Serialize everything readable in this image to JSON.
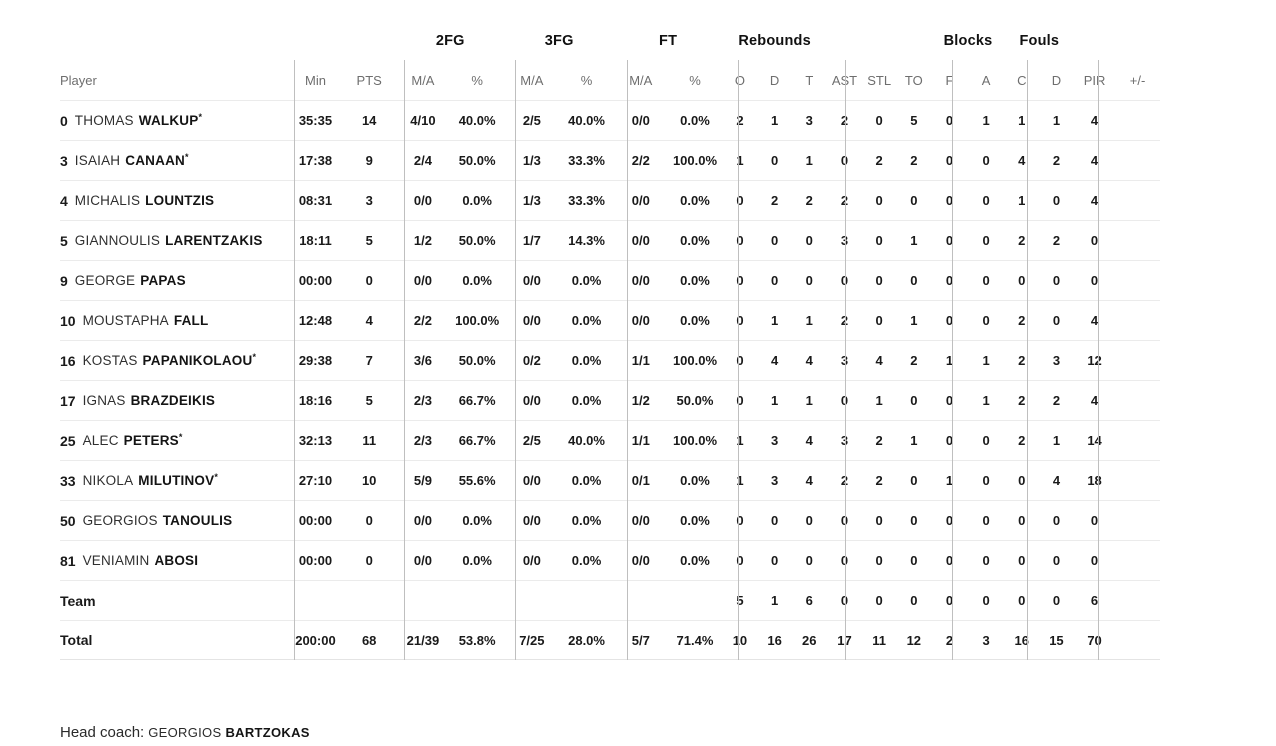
{
  "colors": {
    "text": "#1a1a1a",
    "header_text": "#6e6e6e",
    "vertical_divider": "#bfbfbf",
    "row_divider": "#ebebeb",
    "scrollbar_thumb": "#cbcbcb",
    "scrollbar_track": "#f1f1f1"
  },
  "table": {
    "groups": [
      "2FG",
      "3FG",
      "FT",
      "Rebounds",
      "Blocks",
      "Fouls"
    ],
    "columns": [
      "Player",
      "Min",
      "PTS",
      "M/A",
      "%",
      "M/A",
      "%",
      "M/A",
      "%",
      "O",
      "D",
      "T",
      "AST",
      "STL",
      "TO",
      "F",
      "A",
      "C",
      "D",
      "PIR",
      "+/-"
    ],
    "rows": [
      {
        "num": "0",
        "first": "THOMAS",
        "last": "WALKUP",
        "mark": "*",
        "min": "35:35",
        "pts": "14",
        "fg2_ma": "4/10",
        "fg2_pct": "40.0%",
        "fg3_ma": "2/5",
        "fg3_pct": "40.0%",
        "ft_ma": "0/0",
        "ft_pct": "0.0%",
        "reb_o": "2",
        "reb_d": "1",
        "reb_t": "3",
        "ast": "2",
        "stl": "0",
        "to": "5",
        "blk_f": "0",
        "blk_a": "1",
        "foul_c": "1",
        "foul_d": "1",
        "pir": "4",
        "plus_minus": ""
      },
      {
        "num": "3",
        "first": "ISAIAH",
        "last": "CANAAN",
        "mark": "*",
        "min": "17:38",
        "pts": "9",
        "fg2_ma": "2/4",
        "fg2_pct": "50.0%",
        "fg3_ma": "1/3",
        "fg3_pct": "33.3%",
        "ft_ma": "2/2",
        "ft_pct": "100.0%",
        "reb_o": "1",
        "reb_d": "0",
        "reb_t": "1",
        "ast": "0",
        "stl": "2",
        "to": "2",
        "blk_f": "0",
        "blk_a": "0",
        "foul_c": "4",
        "foul_d": "2",
        "pir": "4",
        "plus_minus": ""
      },
      {
        "num": "4",
        "first": "MICHALIS",
        "last": "LOUNTZIS",
        "mark": "",
        "min": "08:31",
        "pts": "3",
        "fg2_ma": "0/0",
        "fg2_pct": "0.0%",
        "fg3_ma": "1/3",
        "fg3_pct": "33.3%",
        "ft_ma": "0/0",
        "ft_pct": "0.0%",
        "reb_o": "0",
        "reb_d": "2",
        "reb_t": "2",
        "ast": "2",
        "stl": "0",
        "to": "0",
        "blk_f": "0",
        "blk_a": "0",
        "foul_c": "1",
        "foul_d": "0",
        "pir": "4",
        "plus_minus": ""
      },
      {
        "num": "5",
        "first": "GIANNOULIS",
        "last": "LARENTZAKIS",
        "mark": "",
        "min": "18:11",
        "pts": "5",
        "fg2_ma": "1/2",
        "fg2_pct": "50.0%",
        "fg3_ma": "1/7",
        "fg3_pct": "14.3%",
        "ft_ma": "0/0",
        "ft_pct": "0.0%",
        "reb_o": "0",
        "reb_d": "0",
        "reb_t": "0",
        "ast": "3",
        "stl": "0",
        "to": "1",
        "blk_f": "0",
        "blk_a": "0",
        "foul_c": "2",
        "foul_d": "2",
        "pir": "0",
        "plus_minus": ""
      },
      {
        "num": "9",
        "first": "GEORGE",
        "last": "PAPAS",
        "mark": "",
        "min": "00:00",
        "pts": "0",
        "fg2_ma": "0/0",
        "fg2_pct": "0.0%",
        "fg3_ma": "0/0",
        "fg3_pct": "0.0%",
        "ft_ma": "0/0",
        "ft_pct": "0.0%",
        "reb_o": "0",
        "reb_d": "0",
        "reb_t": "0",
        "ast": "0",
        "stl": "0",
        "to": "0",
        "blk_f": "0",
        "blk_a": "0",
        "foul_c": "0",
        "foul_d": "0",
        "pir": "0",
        "plus_minus": ""
      },
      {
        "num": "10",
        "first": "MOUSTAPHA",
        "last": "FALL",
        "mark": "",
        "min": "12:48",
        "pts": "4",
        "fg2_ma": "2/2",
        "fg2_pct": "100.0%",
        "fg3_ma": "0/0",
        "fg3_pct": "0.0%",
        "ft_ma": "0/0",
        "ft_pct": "0.0%",
        "reb_o": "0",
        "reb_d": "1",
        "reb_t": "1",
        "ast": "2",
        "stl": "0",
        "to": "1",
        "blk_f": "0",
        "blk_a": "0",
        "foul_c": "2",
        "foul_d": "0",
        "pir": "4",
        "plus_minus": ""
      },
      {
        "num": "16",
        "first": "KOSTAS",
        "last": "PAPANIKOLAOU",
        "mark": "*",
        "min": "29:38",
        "pts": "7",
        "fg2_ma": "3/6",
        "fg2_pct": "50.0%",
        "fg3_ma": "0/2",
        "fg3_pct": "0.0%",
        "ft_ma": "1/1",
        "ft_pct": "100.0%",
        "reb_o": "0",
        "reb_d": "4",
        "reb_t": "4",
        "ast": "3",
        "stl": "4",
        "to": "2",
        "blk_f": "1",
        "blk_a": "1",
        "foul_c": "2",
        "foul_d": "3",
        "pir": "12",
        "plus_minus": ""
      },
      {
        "num": "17",
        "first": "IGNAS",
        "last": "BRAZDEIKIS",
        "mark": "",
        "min": "18:16",
        "pts": "5",
        "fg2_ma": "2/3",
        "fg2_pct": "66.7%",
        "fg3_ma": "0/0",
        "fg3_pct": "0.0%",
        "ft_ma": "1/2",
        "ft_pct": "50.0%",
        "reb_o": "0",
        "reb_d": "1",
        "reb_t": "1",
        "ast": "0",
        "stl": "1",
        "to": "0",
        "blk_f": "0",
        "blk_a": "1",
        "foul_c": "2",
        "foul_d": "2",
        "pir": "4",
        "plus_minus": ""
      },
      {
        "num": "25",
        "first": "ALEC",
        "last": "PETERS",
        "mark": "*",
        "min": "32:13",
        "pts": "11",
        "fg2_ma": "2/3",
        "fg2_pct": "66.7%",
        "fg3_ma": "2/5",
        "fg3_pct": "40.0%",
        "ft_ma": "1/1",
        "ft_pct": "100.0%",
        "reb_o": "1",
        "reb_d": "3",
        "reb_t": "4",
        "ast": "3",
        "stl": "2",
        "to": "1",
        "blk_f": "0",
        "blk_a": "0",
        "foul_c": "2",
        "foul_d": "1",
        "pir": "14",
        "plus_minus": ""
      },
      {
        "num": "33",
        "first": "NIKOLA",
        "last": "MILUTINOV",
        "mark": "*",
        "min": "27:10",
        "pts": "10",
        "fg2_ma": "5/9",
        "fg2_pct": "55.6%",
        "fg3_ma": "0/0",
        "fg3_pct": "0.0%",
        "ft_ma": "0/1",
        "ft_pct": "0.0%",
        "reb_o": "1",
        "reb_d": "3",
        "reb_t": "4",
        "ast": "2",
        "stl": "2",
        "to": "0",
        "blk_f": "1",
        "blk_a": "0",
        "foul_c": "0",
        "foul_d": "4",
        "pir": "18",
        "plus_minus": ""
      },
      {
        "num": "50",
        "first": "GEORGIOS",
        "last": "TANOULIS",
        "mark": "",
        "min": "00:00",
        "pts": "0",
        "fg2_ma": "0/0",
        "fg2_pct": "0.0%",
        "fg3_ma": "0/0",
        "fg3_pct": "0.0%",
        "ft_ma": "0/0",
        "ft_pct": "0.0%",
        "reb_o": "0",
        "reb_d": "0",
        "reb_t": "0",
        "ast": "0",
        "stl": "0",
        "to": "0",
        "blk_f": "0",
        "blk_a": "0",
        "foul_c": "0",
        "foul_d": "0",
        "pir": "0",
        "plus_minus": ""
      },
      {
        "num": "81",
        "first": "VENIAMIN",
        "last": "ABOSI",
        "mark": "",
        "min": "00:00",
        "pts": "0",
        "fg2_ma": "0/0",
        "fg2_pct": "0.0%",
        "fg3_ma": "0/0",
        "fg3_pct": "0.0%",
        "ft_ma": "0/0",
        "ft_pct": "0.0%",
        "reb_o": "0",
        "reb_d": "0",
        "reb_t": "0",
        "ast": "0",
        "stl": "0",
        "to": "0",
        "blk_f": "0",
        "blk_a": "0",
        "foul_c": "0",
        "foul_d": "0",
        "pir": "0",
        "plus_minus": ""
      }
    ],
    "team_row": {
      "label": "Team",
      "min": "",
      "pts": "",
      "fg2_ma": "",
      "fg2_pct": "",
      "fg3_ma": "",
      "fg3_pct": "",
      "ft_ma": "",
      "ft_pct": "",
      "reb_o": "5",
      "reb_d": "1",
      "reb_t": "6",
      "ast": "0",
      "stl": "0",
      "to": "0",
      "blk_f": "0",
      "blk_a": "0",
      "foul_c": "0",
      "foul_d": "0",
      "pir": "6",
      "plus_minus": ""
    },
    "total_row": {
      "label": "Total",
      "min": "200:00",
      "pts": "68",
      "fg2_ma": "21/39",
      "fg2_pct": "53.8%",
      "fg3_ma": "7/25",
      "fg3_pct": "28.0%",
      "ft_ma": "5/7",
      "ft_pct": "71.4%",
      "reb_o": "10",
      "reb_d": "16",
      "reb_t": "26",
      "ast": "17",
      "stl": "11",
      "to": "12",
      "blk_f": "2",
      "blk_a": "3",
      "foul_c": "16",
      "foul_d": "15",
      "pir": "70",
      "plus_minus": ""
    }
  },
  "scrollbar": {
    "left_chevron": "‹",
    "right_chevron": "›"
  },
  "footer": {
    "label": "Head coach:",
    "coach_first": "GEORGIOS",
    "coach_last": "BARTZOKAS"
  }
}
